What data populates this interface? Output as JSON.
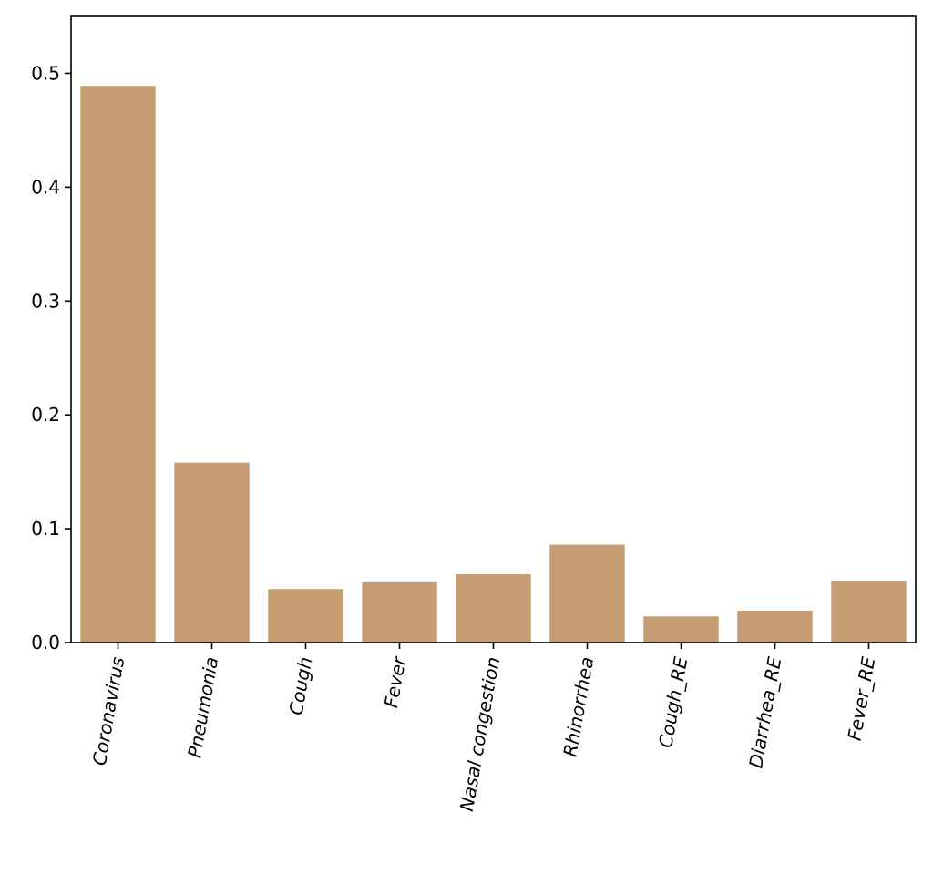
{
  "chart_data": {
    "type": "bar",
    "categories": [
      "Coronavirus",
      "Pneumonia",
      "Cough",
      "Fever",
      "Nasal congestion",
      "Rhinorrhea",
      "Cough_RE",
      "Diarrhea_RE",
      "Fever_RE"
    ],
    "values": [
      0.489,
      0.158,
      0.047,
      0.053,
      0.06,
      0.086,
      0.023,
      0.028,
      0.054
    ],
    "ylim": [
      0,
      0.55
    ],
    "yticks": [
      "0.0",
      "0.1",
      "0.2",
      "0.3",
      "0.4",
      "0.5"
    ],
    "xtick_rotation_deg": 80,
    "grid": false,
    "bar_color": "#c69c72",
    "title": "",
    "xlabel": "",
    "ylabel": ""
  }
}
